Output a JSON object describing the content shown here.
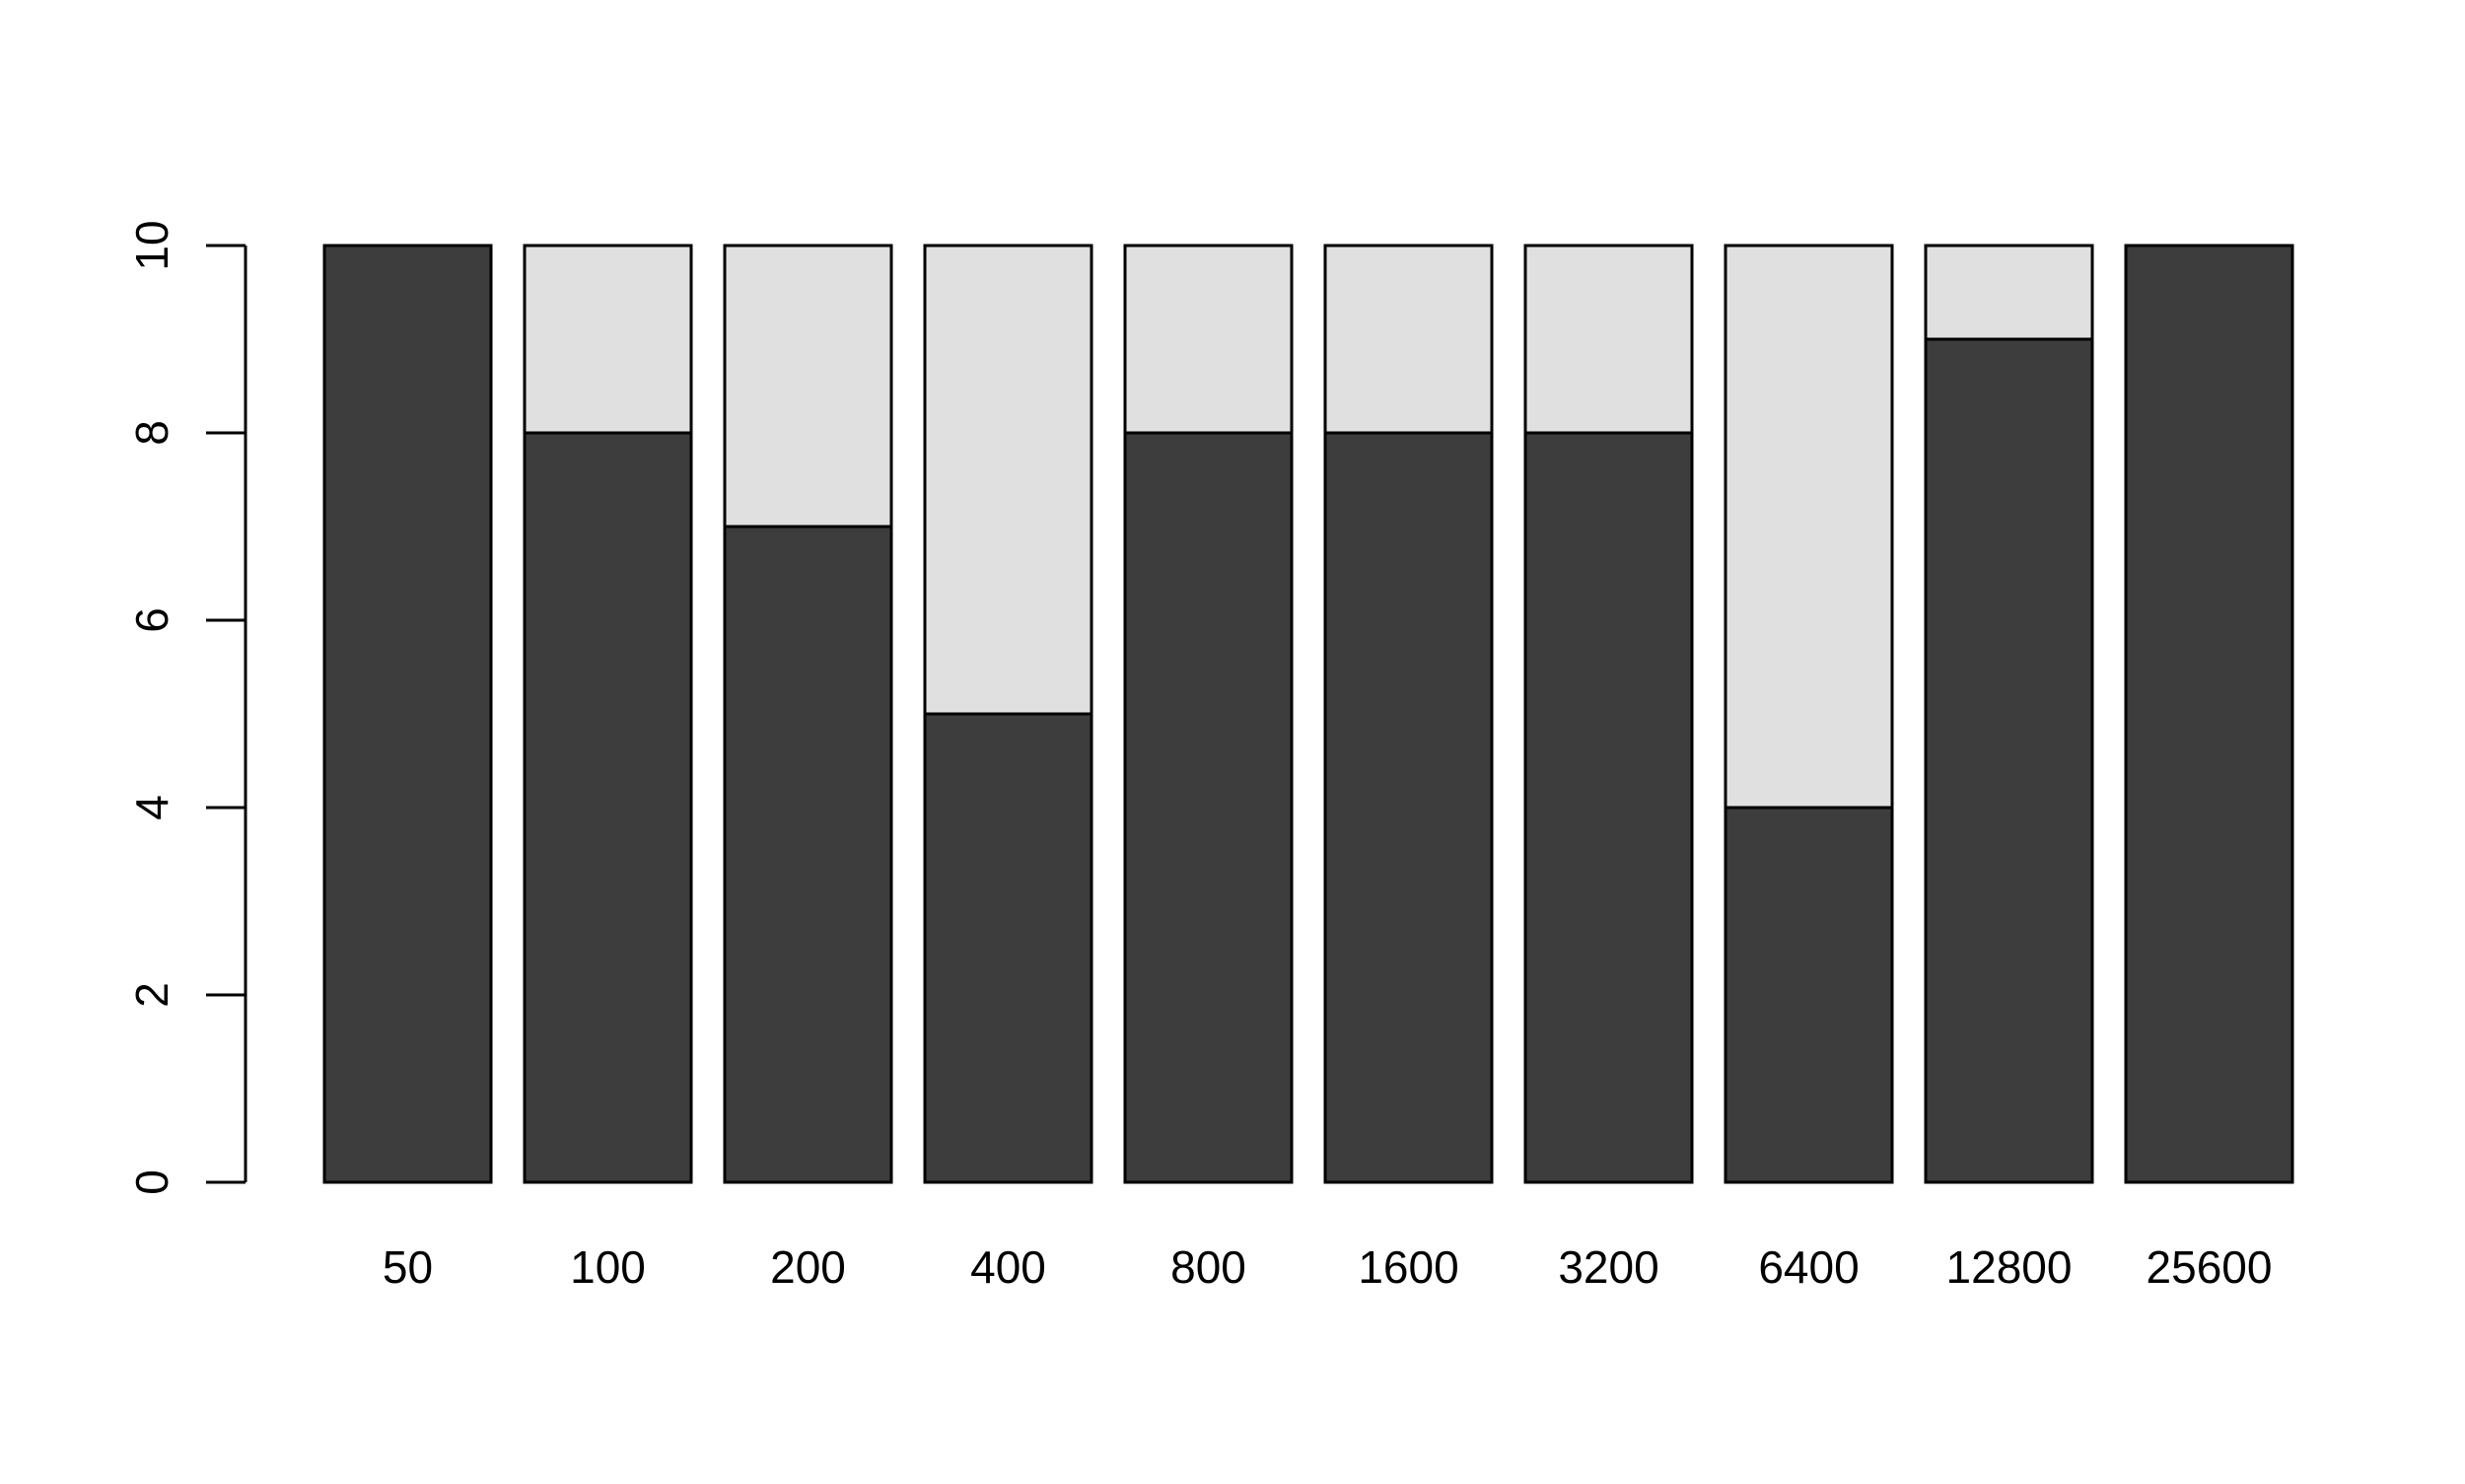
{
  "chart_data": {
    "type": "bar",
    "stacked": true,
    "title": "",
    "xlabel": "",
    "ylabel": "",
    "categories": [
      "50",
      "100",
      "200",
      "400",
      "800",
      "1600",
      "3200",
      "6400",
      "12800",
      "25600"
    ],
    "series": [
      {
        "color": "#3d3d3d",
        "values": [
          10,
          8,
          7,
          5,
          8,
          8,
          8,
          4,
          9,
          10
        ]
      },
      {
        "color": "#e0e0e0",
        "values": [
          0,
          2,
          3,
          5,
          2,
          2,
          2,
          6,
          1,
          0
        ]
      }
    ],
    "ylim": [
      0,
      10
    ],
    "yticks": [
      0,
      2,
      4,
      6,
      8,
      10
    ],
    "grid": false,
    "legend": "none",
    "bar_outline_color": "#000000"
  }
}
